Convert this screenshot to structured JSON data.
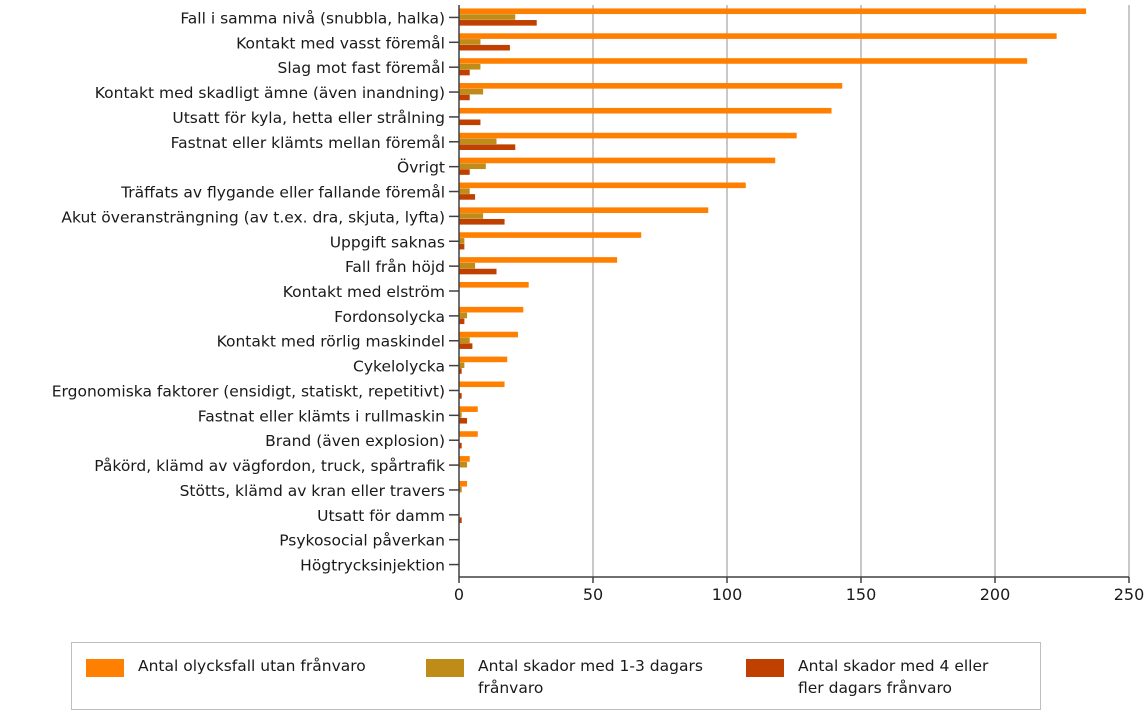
{
  "chart_data": {
    "type": "bar",
    "orientation": "horizontal",
    "categories": [
      "Fall i samma nivå (snubbla, halka)",
      "Kontakt med vasst föremål",
      "Slag mot fast föremål",
      "Kontakt med skadligt ämne (även inandning)",
      "Utsatt för kyla, hetta eller strålning",
      "Fastnat eller klämts mellan föremål",
      "Övrigt",
      "Träffats av flygande eller fallande föremål",
      "Akut överansträngning (av t.ex. dra, skjuta, lyfta)",
      "Uppgift saknas",
      "Fall från höjd",
      "Kontakt med elström",
      "Fordonsolycka",
      "Kontakt med rörlig maskindel",
      "Cykelolycka",
      "Ergonomiska faktorer (ensidigt, statiskt, repetitivt)",
      "Fastnat eller klämts i rullmaskin",
      "Brand (även explosion)",
      "Påkörd, klämd av vägfordon, truck, spårtrafik",
      "Stötts, klämd av kran eller travers",
      "Utsatt för damm",
      "Psykosocial påverkan",
      "Högtrycksinjektion"
    ],
    "series": [
      {
        "name": "Antal olycksfall utan frånvaro",
        "color": "#ff8000",
        "values": [
          234,
          223,
          212,
          143,
          139,
          126,
          118,
          107,
          93,
          68,
          59,
          26,
          24,
          22,
          18,
          17,
          7,
          7,
          4,
          3,
          0,
          0,
          0
        ]
      },
      {
        "name": "Antal skador med 1-3 dagars frånvaro",
        "color": "#bf8c1a",
        "values": [
          21,
          8,
          8,
          9,
          0,
          14,
          10,
          4,
          9,
          2,
          6,
          0,
          3,
          4,
          2,
          0,
          1,
          0,
          3,
          1,
          0,
          0,
          0
        ]
      },
      {
        "name": "Antal skador med 4 eller fler dagars frånvaro",
        "color": "#c04000",
        "values": [
          29,
          19,
          4,
          4,
          8,
          21,
          4,
          6,
          17,
          2,
          14,
          0,
          2,
          5,
          1,
          1,
          3,
          1,
          0,
          0,
          1,
          0,
          0
        ]
      }
    ],
    "x_ticks": [
      "0",
      "50",
      "100",
      "150",
      "200",
      "250"
    ],
    "xlim": [
      0,
      250
    ],
    "grid": "vertical",
    "legend_position": "bottom"
  },
  "legend": {
    "items": [
      {
        "label_lines": [
          "Antal olycksfall utan frånvaro"
        ],
        "color": "#ff8000"
      },
      {
        "label_lines": [
          "Antal skador med 1-3 dagars",
          "frånvaro"
        ],
        "color": "#bf8c1a"
      },
      {
        "label_lines": [
          "Antal skador med 4 eller",
          "fler dagars frånvaro"
        ],
        "color": "#c04000"
      }
    ]
  }
}
